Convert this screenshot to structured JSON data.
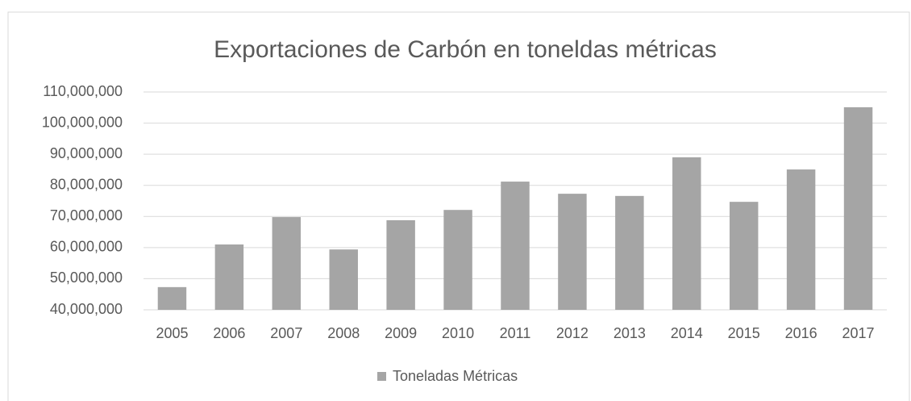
{
  "chart_data": {
    "type": "bar",
    "title": "Exportaciones de Carbón en toneldas métricas",
    "categories": [
      "2005",
      "2006",
      "2007",
      "2008",
      "2009",
      "2010",
      "2011",
      "2012",
      "2013",
      "2014",
      "2015",
      "2016",
      "2017"
    ],
    "series": [
      {
        "name": "Toneladas Métricas",
        "color": "#a5a5a5",
        "values": [
          47300000,
          61000000,
          69800000,
          59400000,
          68800000,
          72100000,
          81200000,
          77300000,
          76600000,
          89000000,
          74700000,
          85100000,
          105100000
        ]
      }
    ],
    "ylim": [
      40000000,
      110000000
    ],
    "yticks": [
      {
        "value": 40000000,
        "label": "40,000,000"
      },
      {
        "value": 50000000,
        "label": "50,000,000"
      },
      {
        "value": 60000000,
        "label": "60,000,000"
      },
      {
        "value": 70000000,
        "label": "70,000,000"
      },
      {
        "value": 80000000,
        "label": "80,000,000"
      },
      {
        "value": 90000000,
        "label": "90,000,000"
      },
      {
        "value": 100000000,
        "label": "100,000,000"
      },
      {
        "value": 110000000,
        "label": "110,000,000"
      }
    ],
    "grid": true,
    "legend": "bottom"
  }
}
